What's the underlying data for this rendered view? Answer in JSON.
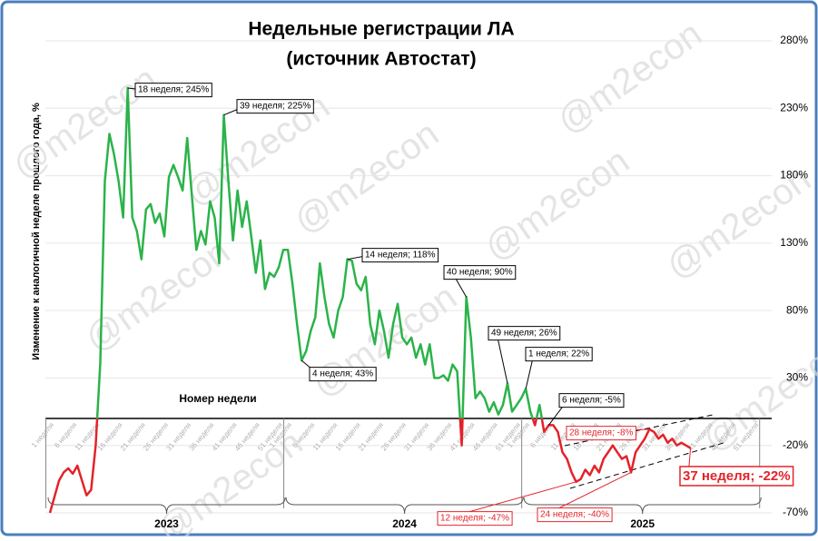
{
  "chart_data": {
    "type": "line",
    "title": "Недельные регистрации ЛА",
    "subtitle": "(источник Автостат)",
    "y_label": "Изменение к аналогичной неделе прошлого года, %",
    "x_label": "Номер недели",
    "watermark": "@m2econ",
    "years": [
      "2023",
      "2024",
      "2025"
    ],
    "categories": [
      "1 неделя",
      null,
      null,
      null,
      null,
      "6 неделя",
      null,
      null,
      null,
      null,
      "11 неделя",
      null,
      null,
      null,
      null,
      "16 неделя",
      null,
      null,
      null,
      null,
      "21 неделя",
      null,
      null,
      null,
      null,
      "26 неделя",
      null,
      null,
      null,
      null,
      "31 неделя",
      null,
      null,
      null,
      null,
      "36 неделя",
      null,
      null,
      null,
      null,
      "41 неделя",
      null,
      null,
      null,
      null,
      "46 неделя",
      null,
      null,
      null,
      null,
      "51 неделя",
      null,
      "1 неделя",
      null,
      null,
      null,
      null,
      "6 неделя",
      null,
      null,
      null,
      null,
      "11 неделя",
      null,
      null,
      null,
      null,
      "16 неделя",
      null,
      null,
      null,
      null,
      "21 неделя",
      null,
      null,
      null,
      null,
      "26 неделя",
      null,
      null,
      null,
      null,
      "31 неделя",
      null,
      null,
      null,
      null,
      "36 неделя",
      null,
      null,
      null,
      null,
      "41 неделя",
      null,
      null,
      null,
      null,
      "46 неделя",
      null,
      null,
      null,
      null,
      "51 неделя",
      null,
      "1 неделя",
      null,
      null,
      null,
      null,
      "6 неделя",
      null,
      null,
      null,
      null,
      "11 неделя",
      null,
      null,
      null,
      null,
      "16 неделя",
      null,
      null,
      null,
      null,
      "21 неделя",
      null,
      null,
      null,
      null,
      "26 неделя",
      null,
      null,
      null,
      null,
      "31 неделя",
      null,
      null,
      null,
      null,
      "36 неделя",
      null,
      null,
      null,
      null,
      "41 неделя",
      null,
      null,
      null,
      null,
      "46 неделя",
      null,
      null,
      null,
      null,
      "51 неделя",
      null
    ],
    "values": [
      -70,
      -58,
      -46,
      -40,
      -37,
      -41,
      -35,
      -46,
      -57,
      -53,
      -20,
      41,
      176,
      211,
      196,
      176,
      149,
      245,
      149,
      139,
      118,
      155,
      159,
      145,
      152,
      135,
      179,
      188,
      179,
      169,
      208,
      166,
      125,
      139,
      129,
      161,
      149,
      115,
      225,
      176,
      132,
      169,
      142,
      161,
      135,
      108,
      132,
      96,
      108,
      105,
      112,
      125,
      125,
      100,
      70,
      43,
      50,
      65,
      75,
      115,
      90,
      70,
      60,
      80,
      90,
      118,
      117,
      100,
      95,
      105,
      70,
      55,
      80,
      65,
      45,
      70,
      85,
      60,
      55,
      60,
      45,
      55,
      40,
      55,
      30,
      30,
      32,
      28,
      40,
      35,
      -20,
      90,
      60,
      15,
      20,
      15,
      5,
      12,
      3,
      10,
      26,
      5,
      10,
      15,
      22,
      5,
      -5,
      10,
      -10,
      -5,
      -5,
      -10,
      -25,
      -30,
      -40,
      -47,
      -45,
      -38,
      -42,
      -35,
      -40,
      -30,
      -25,
      -20,
      -25,
      -30,
      -28,
      -40,
      -25,
      -20,
      -15,
      -8,
      -10,
      -15,
      -12,
      -18,
      -15,
      -20,
      -18,
      -20,
      -22,
      null,
      null,
      null,
      null,
      null,
      null,
      null,
      null,
      null,
      null,
      null,
      null,
      null,
      null,
      null
    ],
    "color": "#2bb34a",
    "negative_color": "#e3232a",
    "ylim": [
      -70,
      280
    ],
    "yticks": [
      {
        "value": -70,
        "label": "-70%"
      },
      {
        "value": -20,
        "label": "-20%"
      },
      {
        "value": 30,
        "label": "30%"
      },
      {
        "value": 80,
        "label": "80%"
      },
      {
        "value": 130,
        "label": "130%"
      },
      {
        "value": 180,
        "label": "180%"
      },
      {
        "value": 230,
        "label": "230%"
      },
      {
        "value": 280,
        "label": "280%"
      }
    ],
    "grid": true,
    "annotations": [
      "18 неделя; 245%",
      "39 неделя; 225%",
      "14 неделя; 118%",
      "40 неделя; 90%",
      "4 неделя; 43%",
      "49 неделя; 26%",
      "1 неделя; 22%",
      "6 неделя; -5%",
      "28 неделя; -8%",
      "12 неделя; -47%",
      "24 неделя; -40%",
      "37 неделя; -22%"
    ]
  }
}
